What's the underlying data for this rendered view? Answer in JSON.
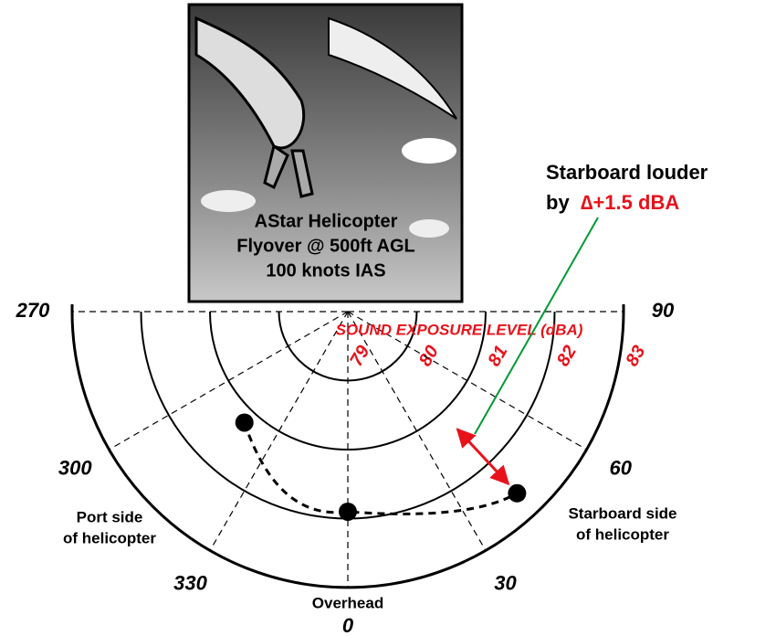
{
  "chart_data": {
    "type": "polar",
    "image_caption": [
      "AStar Helicopter",
      "Flyover @ 500ft AGL",
      "100 knots IAS"
    ],
    "radial_axis_label": "SOUND EXPOSURE LEVEL (dBA)",
    "rlim": [
      79,
      83
    ],
    "rticks": [
      79,
      80,
      81,
      82,
      83
    ],
    "thetaticks": [
      270,
      300,
      330,
      0,
      30,
      60,
      90
    ],
    "series": [
      {
        "color": "#000000",
        "theta": [
          317,
          0,
          43
        ],
        "r": [
          81.2,
          81.9,
          82.6
        ]
      }
    ],
    "annotations": {
      "callout": [
        "Starboard louder",
        "by",
        "∆+1.5 dBA"
      ],
      "port": [
        "Port side",
        "of helicopter"
      ],
      "starboard": [
        "Starboard side",
        "of helicopter"
      ],
      "overhead": "Overhead"
    },
    "arrow_color": "#e8121b",
    "callout_line_color": "#009933",
    "axis_label_color": "#e8121b"
  }
}
